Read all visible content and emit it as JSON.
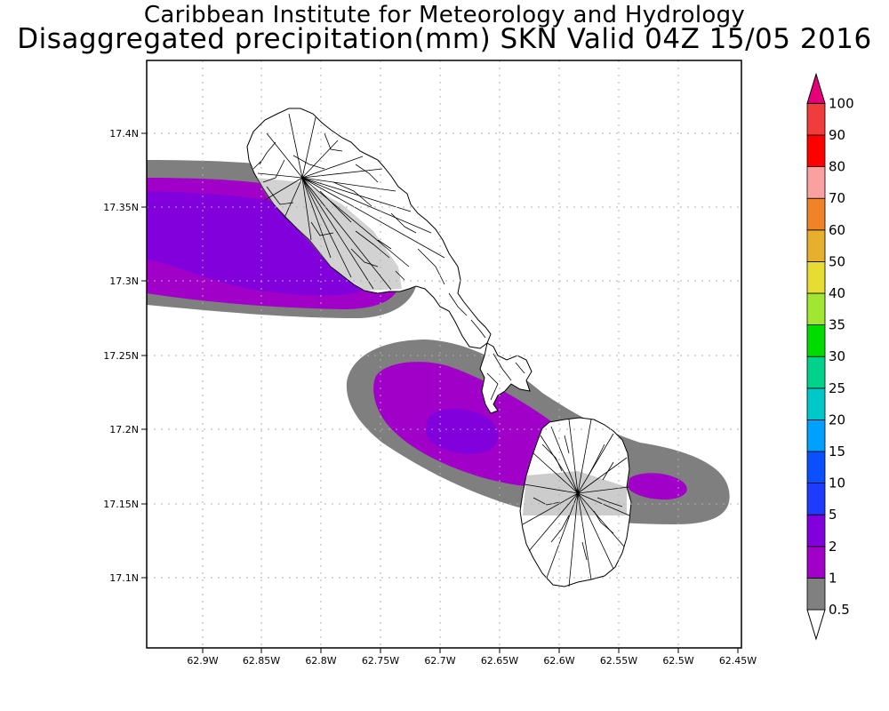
{
  "title": {
    "line1": "Caribbean Institute for Meteorology and Hydrology",
    "line2": "Disaggregated precipitation(mm) SKN Valid 04Z 15/05 2016"
  },
  "map": {
    "lon_ticks": [
      "62.9W",
      "62.85W",
      "62.8W",
      "62.75W",
      "62.7W",
      "62.65W",
      "62.6W",
      "62.55W",
      "62.5W",
      "62.45W"
    ],
    "lat_ticks": [
      "17.4N",
      "17.35N",
      "17.3N",
      "17.25N",
      "17.2N",
      "17.15N",
      "17.1N"
    ],
    "grid": "dotted"
  },
  "colorbar": {
    "labels": [
      "0.5",
      "1",
      "2",
      "5",
      "10",
      "15",
      "20",
      "25",
      "30",
      "35",
      "40",
      "50",
      "60",
      "70",
      "80",
      "90",
      "100"
    ],
    "colors": [
      "#808080",
      "#a000c8",
      "#8200dc",
      "#1e3cff",
      "#0a50ff",
      "#00a0ff",
      "#00c8c8",
      "#00d28c",
      "#00dc00",
      "#a0e632",
      "#e6dc32",
      "#e6af2d",
      "#f08228",
      "#faa0a0",
      "#ff0000",
      "#f03c3c",
      "#e6007a"
    ],
    "top_arrow_color": "#e6007a"
  },
  "colors": {
    "band_0_5": "#7f7f7f",
    "band_1": "#a000c8",
    "band_2": "#8200dc"
  }
}
